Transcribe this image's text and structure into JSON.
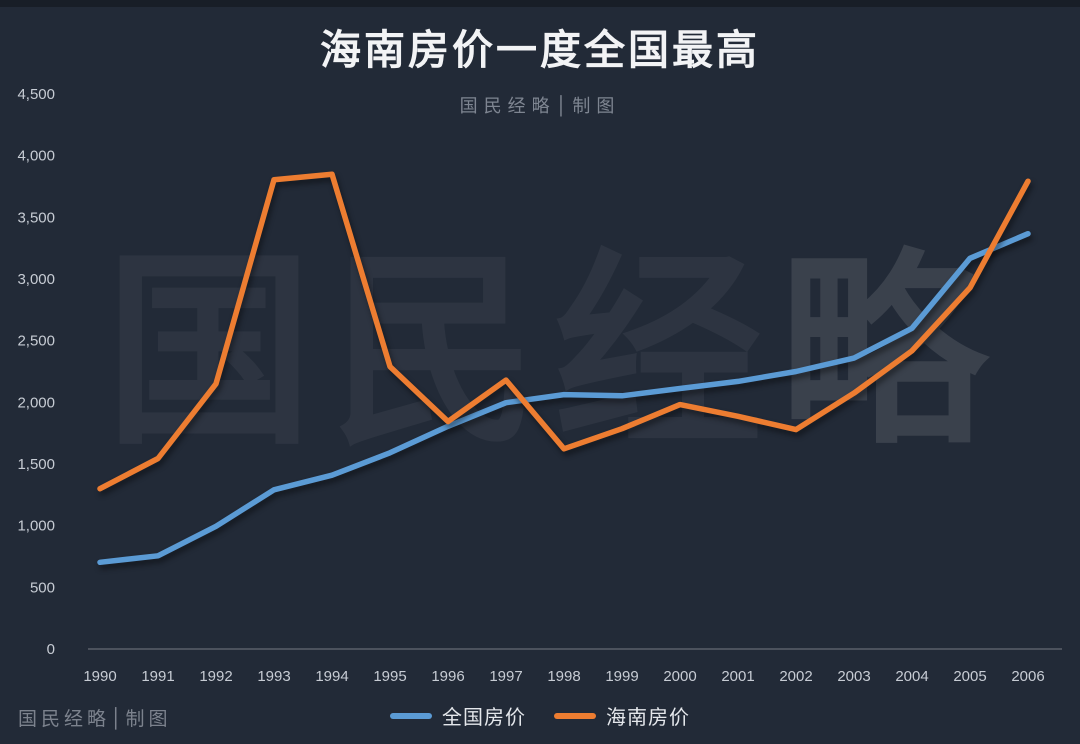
{
  "page": {
    "background_color": "#222A37",
    "title": "海南房价一度全国最高",
    "subtitle": "国民经略│制图"
  },
  "watermark": {
    "chars": [
      "国",
      "民",
      "经",
      "略"
    ],
    "bottom_left": "国民经略│制图"
  },
  "chart_data": {
    "type": "line",
    "title": "海南房价一度全国最高",
    "subtitle": "国民经略│制图",
    "categories": [
      "1990",
      "1991",
      "1992",
      "1993",
      "1994",
      "1995",
      "1996",
      "1997",
      "1998",
      "1999",
      "2000",
      "2001",
      "2002",
      "2003",
      "2004",
      "2005",
      "2006"
    ],
    "series": [
      {
        "name": "全国房价",
        "color": "#5B9BD5",
        "values": [
          703,
          756,
          995,
          1291,
          1409,
          1591,
          1806,
          1997,
          2063,
          2053,
          2112,
          2170,
          2250,
          2359,
          2600,
          3168,
          3367
        ]
      },
      {
        "name": "海南房价",
        "color": "#ED7D31",
        "values": [
          1300,
          1545,
          2150,
          3805,
          3850,
          2290,
          1845,
          2180,
          1623,
          1786,
          1982,
          1887,
          1779,
          2075,
          2418,
          2929,
          3793
        ]
      }
    ],
    "xlabel": "",
    "ylabel": "",
    "ylim": [
      0,
      4500
    ],
    "ytick_step": 500,
    "yticks": [
      "0",
      "500",
      "1,000",
      "1,500",
      "2,000",
      "2,500",
      "3,000",
      "3,500",
      "4,000",
      "4,500"
    ],
    "grid": false,
    "legend_position": "bottom",
    "background": "#222A37",
    "axis_line_color": "#9AA0AA"
  }
}
